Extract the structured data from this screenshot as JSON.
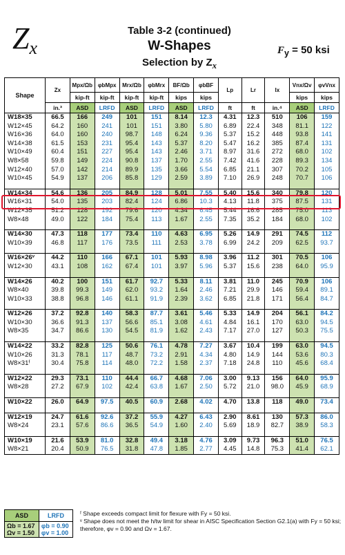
{
  "header": {
    "symbol_main": "Z",
    "symbol_sub": "x",
    "title_line1": "Table 3-2 (continued)",
    "title_line2": "W-Shapes",
    "title_line3": "Selection by Z",
    "title_line3_sub": "x",
    "fy_label": "F",
    "fy_sub": "y",
    "fy_value": " = 50 ksi"
  },
  "columns": {
    "top": [
      "Shape",
      "Zx",
      "Mpx/Ωb",
      "φbMpx",
      "Mrx/Ωb",
      "φbMrx",
      "BF/Ωb",
      "φbBF",
      "Lp",
      "Lr",
      "Ix",
      "Vnx/Ωv",
      "φvVnx"
    ],
    "units": [
      "",
      "kip-ft",
      "kip-ft",
      "kip-ft",
      "kip-ft",
      "kips",
      "kips",
      "",
      "",
      "",
      "kips",
      "kips"
    ],
    "bottom": [
      "in.³",
      "ASD",
      "LRFD",
      "ASD",
      "LRFD",
      "ASD",
      "LRFD",
      "ft",
      "ft",
      "in.⁴",
      "ASD",
      "LRFD"
    ]
  },
  "rows": [
    [
      "W18×35",
      "66.5",
      "166",
      "249",
      "101",
      "151",
      "8.14",
      "12.3",
      "4.31",
      "12.3",
      "510",
      "106",
      "159"
    ],
    [
      "W12×45",
      "64.2",
      "160",
      "241",
      "101",
      "151",
      "3.80",
      "5.80",
      "6.89",
      "22.4",
      "348",
      "81.1",
      "122"
    ],
    [
      "W16×36",
      "64.0",
      "160",
      "240",
      "98.7",
      "148",
      "6.24",
      "9.36",
      "5.37",
      "15.2",
      "448",
      "93.8",
      "141"
    ],
    [
      "W14×38",
      "61.5",
      "153",
      "231",
      "95.4",
      "143",
      "5.37",
      "8.20",
      "5.47",
      "16.2",
      "385",
      "87.4",
      "131"
    ],
    [
      "W10×49",
      "60.4",
      "151",
      "227",
      "95.4",
      "143",
      "2.46",
      "3.71",
      "8.97",
      "31.6",
      "272",
      "68.0",
      "102"
    ],
    [
      "W8×58",
      "59.8",
      "149",
      "224",
      "90.8",
      "137",
      "1.70",
      "2.55",
      "7.42",
      "41.6",
      "228",
      "89.3",
      "134"
    ],
    [
      "W12×40",
      "57.0",
      "142",
      "214",
      "89.9",
      "135",
      "3.66",
      "5.54",
      "6.85",
      "21.1",
      "307",
      "70.2",
      "105"
    ],
    [
      "W10×45",
      "54.9",
      "137",
      "206",
      "85.8",
      "129",
      "2.59",
      "3.89",
      "7.10",
      "26.9",
      "248",
      "70.7",
      "106"
    ],
    [
      "W14×34",
      "54.6",
      "136",
      "205",
      "84.9",
      "128",
      "5.01",
      "7.55",
      "5.40",
      "15.6",
      "340",
      "79.8",
      "120"
    ],
    [
      "W16×31",
      "54.0",
      "135",
      "203",
      "82.4",
      "124",
      "6.86",
      "10.3",
      "4.13",
      "11.8",
      "375",
      "87.5",
      "131"
    ],
    [
      "W12×35",
      "51.2",
      "128",
      "192",
      "79.6",
      "120",
      "4.34",
      "6.45",
      "5.44",
      "16.6",
      "285",
      "75.0",
      "113"
    ],
    [
      "W8×48",
      "49.0",
      "122",
      "184",
      "75.4",
      "113",
      "1.67",
      "2.55",
      "7.35",
      "35.2",
      "184",
      "68.0",
      "102"
    ],
    [
      "W14×30",
      "47.3",
      "118",
      "177",
      "73.4",
      "110",
      "4.63",
      "6.95",
      "5.26",
      "14.9",
      "291",
      "74.5",
      "112"
    ],
    [
      "W10×39",
      "46.8",
      "117",
      "176",
      "73.5",
      "111",
      "2.53",
      "3.78",
      "6.99",
      "24.2",
      "209",
      "62.5",
      "93.7"
    ],
    [
      "W16×26ᵛ",
      "44.2",
      "110",
      "166",
      "67.1",
      "101",
      "5.93",
      "8.98",
      "3.96",
      "11.2",
      "301",
      "70.5",
      "106"
    ],
    [
      "W12×30",
      "43.1",
      "108",
      "162",
      "67.4",
      "101",
      "3.97",
      "5.96",
      "5.37",
      "15.6",
      "238",
      "64.0",
      "95.9"
    ],
    [
      "W14×26",
      "40.2",
      "100",
      "151",
      "61.7",
      "92.7",
      "5.33",
      "8.11",
      "3.81",
      "11.0",
      "245",
      "70.9",
      "106"
    ],
    [
      "W8×40",
      "39.8",
      "99.3",
      "149",
      "62.0",
      "93.2",
      "1.64",
      "2.46",
      "7.21",
      "29.9",
      "146",
      "59.4",
      "89.1"
    ],
    [
      "W10×33",
      "38.8",
      "96.8",
      "146",
      "61.1",
      "91.9",
      "2.39",
      "3.62",
      "6.85",
      "21.8",
      "171",
      "56.4",
      "84.7"
    ],
    [
      "W12×26",
      "37.2",
      "92.8",
      "140",
      "58.3",
      "87.7",
      "3.61",
      "5.46",
      "5.33",
      "14.9",
      "204",
      "56.1",
      "84.2"
    ],
    [
      "W10×30",
      "36.6",
      "91.3",
      "137",
      "56.6",
      "85.1",
      "3.08",
      "4.61",
      "4.84",
      "16.1",
      "170",
      "63.0",
      "94.5"
    ],
    [
      "W8×35",
      "34.7",
      "86.6",
      "130",
      "54.5",
      "81.9",
      "1.62",
      "2.43",
      "7.17",
      "27.0",
      "127",
      "50.3",
      "75.5"
    ],
    [
      "W14×22",
      "33.2",
      "82.8",
      "125",
      "50.6",
      "76.1",
      "4.78",
      "7.27",
      "3.67",
      "10.4",
      "199",
      "63.0",
      "94.5"
    ],
    [
      "W10×26",
      "31.3",
      "78.1",
      "117",
      "48.7",
      "73.2",
      "2.91",
      "4.34",
      "4.80",
      "14.9",
      "144",
      "53.6",
      "80.3"
    ],
    [
      "W8×31ᶠ",
      "30.4",
      "75.8",
      "114",
      "48.0",
      "72.2",
      "1.58",
      "2.37",
      "7.18",
      "24.8",
      "110",
      "45.6",
      "68.4"
    ],
    [
      "W12×22",
      "29.3",
      "73.1",
      "110",
      "44.4",
      "66.7",
      "4.68",
      "7.06",
      "3.00",
      "9.13",
      "156",
      "64.0",
      "95.9"
    ],
    [
      "W8×28",
      "27.2",
      "67.9",
      "102",
      "42.4",
      "63.8",
      "1.67",
      "2.50",
      "5.72",
      "21.0",
      "98.0",
      "45.9",
      "68.9"
    ],
    [
      "W10×22",
      "26.0",
      "64.9",
      "97.5",
      "40.5",
      "60.9",
      "2.68",
      "4.02",
      "4.70",
      "13.8",
      "118",
      "49.0",
      "73.4"
    ],
    [
      "W12×19",
      "24.7",
      "61.6",
      "92.6",
      "37.2",
      "55.9",
      "4.27",
      "6.43",
      "2.90",
      "8.61",
      "130",
      "57.3",
      "86.0"
    ],
    [
      "W8×24",
      "23.1",
      "57.6",
      "86.6",
      "36.5",
      "54.9",
      "1.60",
      "2.40",
      "5.69",
      "18.9",
      "82.7",
      "38.9",
      "58.3"
    ],
    [
      "W10×19",
      "21.6",
      "53.9",
      "81.0",
      "32.8",
      "49.4",
      "3.18",
      "4.76",
      "3.09",
      "9.73",
      "96.3",
      "51.0",
      "76.5"
    ],
    [
      "W8×21",
      "20.4",
      "50.9",
      "76.5",
      "31.8",
      "47.8",
      "1.85",
      "2.77",
      "4.45",
      "14.8",
      "75.3",
      "41.4",
      "62.1"
    ]
  ],
  "groups": [
    [
      0,
      8
    ],
    [
      8,
      12
    ],
    [
      12,
      14
    ],
    [
      14,
      16
    ],
    [
      16,
      19
    ],
    [
      19,
      22
    ],
    [
      22,
      25
    ],
    [
      25,
      27
    ],
    [
      27,
      28
    ],
    [
      28,
      30
    ],
    [
      30,
      32
    ]
  ],
  "highlighted_shape": "W16×31",
  "footer": {
    "asd_label": "ASD",
    "lrfd_label": "LRFD",
    "asd_values": [
      "Ωb = 1.67",
      "Ωv = 1.50"
    ],
    "lrfd_values": [
      "φb = 0.90",
      "φv = 1.00"
    ],
    "note1": "ᶠ Shape exceeds compact limit for flexure with Fy = 50 ksi.",
    "note2": "ᵛ Shape does not meet the h/tw limit for shear in AISC Specification Section G2.1(a) with Fy = 50 ksi; therefore, φv = 0.90 and Ωv = 1.67."
  },
  "colors": {
    "asd_green": "#a8cf7b",
    "asd_cell_green": "#cde2b0",
    "lrfd_blue": "#1f74b8",
    "highlight_red": "#e0152d"
  }
}
